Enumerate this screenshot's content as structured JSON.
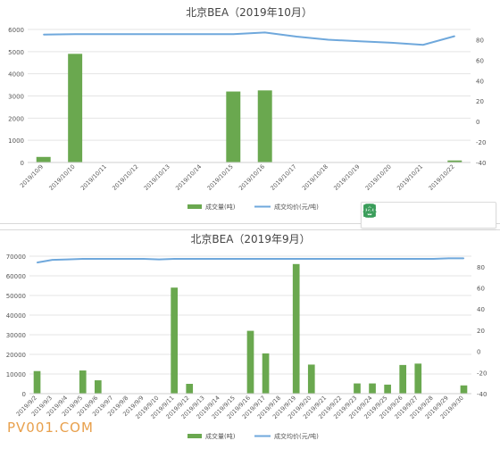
{
  "chart_data": [
    {
      "type": "bar",
      "title": "北京BEA（2019年10月）",
      "categories": [
        "2019/10/9",
        "2019/10/10",
        "2019/10/11",
        "2019/10/12",
        "2019/10/13",
        "2019/10/14",
        "2019/10/15",
        "2019/10/16",
        "2019/10/17",
        "2019/10/18",
        "2019/10/19",
        "2019/10/20",
        "2019/10/21",
        "2019/10/22"
      ],
      "y_ticks": [
        0,
        1000,
        2000,
        3000,
        4000,
        5000,
        6000
      ],
      "y2_ticks": [
        -40,
        -20,
        0,
        20,
        40,
        60,
        80
      ],
      "ylim": [
        0,
        6000
      ],
      "y2lim": [
        -40,
        90
      ],
      "series": [
        {
          "name": "成交量(吨)",
          "kind": "bar",
          "color": "#6aa84f",
          "values": [
            250,
            4900,
            0,
            0,
            0,
            0,
            3200,
            3250,
            0,
            0,
            0,
            0,
            0,
            90
          ]
        },
        {
          "name": "成交均价(元/吨)",
          "kind": "line",
          "axis": "right",
          "color": "#6fa8dc",
          "values": [
            85,
            85.5,
            85.5,
            85.5,
            85.5,
            85.5,
            85.5,
            87,
            83,
            80,
            78.5,
            77,
            75,
            83.5
          ]
        }
      ],
      "legend": "bottom",
      "grid": true
    },
    {
      "type": "bar",
      "title": "北京BEA（2019年9月）",
      "categories": [
        "2019/9/2",
        "2019/9/3",
        "2019/9/4",
        "2019/9/5",
        "2019/9/6",
        "2019/9/7",
        "2019/9/8",
        "2019/9/9",
        "2019/9/10",
        "2019/9/11",
        "2019/9/12",
        "2019/9/13",
        "2019/9/14",
        "2019/9/15",
        "2019/9/16",
        "2019/9/17",
        "2019/9/18",
        "2019/9/19",
        "2019/9/20",
        "2019/9/21",
        "2019/9/22",
        "2019/9/23",
        "2019/9/24",
        "2019/9/25",
        "2019/9/26",
        "2019/9/27",
        "2019/9/28",
        "2019/9/29",
        "2019/9/30"
      ],
      "y_ticks": [
        0,
        10000,
        20000,
        30000,
        40000,
        50000,
        60000,
        70000
      ],
      "y2_ticks": [
        -40,
        -20,
        0,
        20,
        40,
        60,
        80
      ],
      "ylim": [
        0,
        70000
      ],
      "y2lim": [
        -40,
        90
      ],
      "series": [
        {
          "name": "成交量(吨)",
          "kind": "bar",
          "color": "#6aa84f",
          "values": [
            11500,
            0,
            0,
            11800,
            6800,
            0,
            0,
            0,
            0,
            54000,
            5000,
            0,
            0,
            0,
            32000,
            20500,
            0,
            66000,
            14800,
            0,
            0,
            5200,
            5200,
            4600,
            14600,
            15300,
            0,
            0,
            4200
          ]
        },
        {
          "name": "成交均价(元/吨)",
          "kind": "line",
          "axis": "right",
          "color": "#6fa8dc",
          "values": [
            84,
            86.5,
            87,
            87.5,
            87.5,
            87.5,
            87.5,
            87.5,
            87,
            87.5,
            87.5,
            87.5,
            87.5,
            87.5,
            87.5,
            87.5,
            87.5,
            87.5,
            87.5,
            87.5,
            87.5,
            87.5,
            87.5,
            87.5,
            87.5,
            87.5,
            87.5,
            88,
            88
          ]
        }
      ],
      "legend": "bottom",
      "grid": true
    }
  ],
  "toolbar": {
    "icons": [
      "tablet-icon",
      "expand-icon",
      "save-icon",
      "share-icon",
      "settings-icon"
    ],
    "accent_color": "#3a9d5a"
  },
  "watermark": "PV001.COM"
}
